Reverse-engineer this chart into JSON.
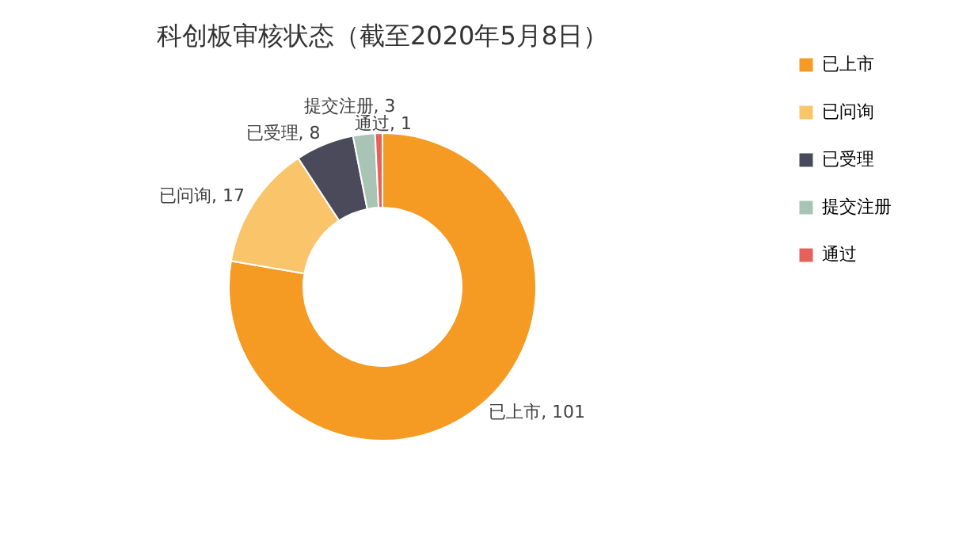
{
  "chart_data": {
    "type": "donut",
    "title": "科创板审核状态（截至2020年5月8日）",
    "categories": [
      "已上市",
      "已问询",
      "已受理",
      "提交注册",
      "通过"
    ],
    "values": [
      101,
      17,
      8,
      3,
      1
    ],
    "value_labels": [
      "已上市, 101",
      "已问询, 17",
      "已受理, 8",
      "提交注册, 3",
      "通过, 1"
    ],
    "colors": [
      "#f59a23",
      "#fac46b",
      "#4a4a5a",
      "#a9c4b5",
      "#e8605a"
    ],
    "legend": "right"
  }
}
